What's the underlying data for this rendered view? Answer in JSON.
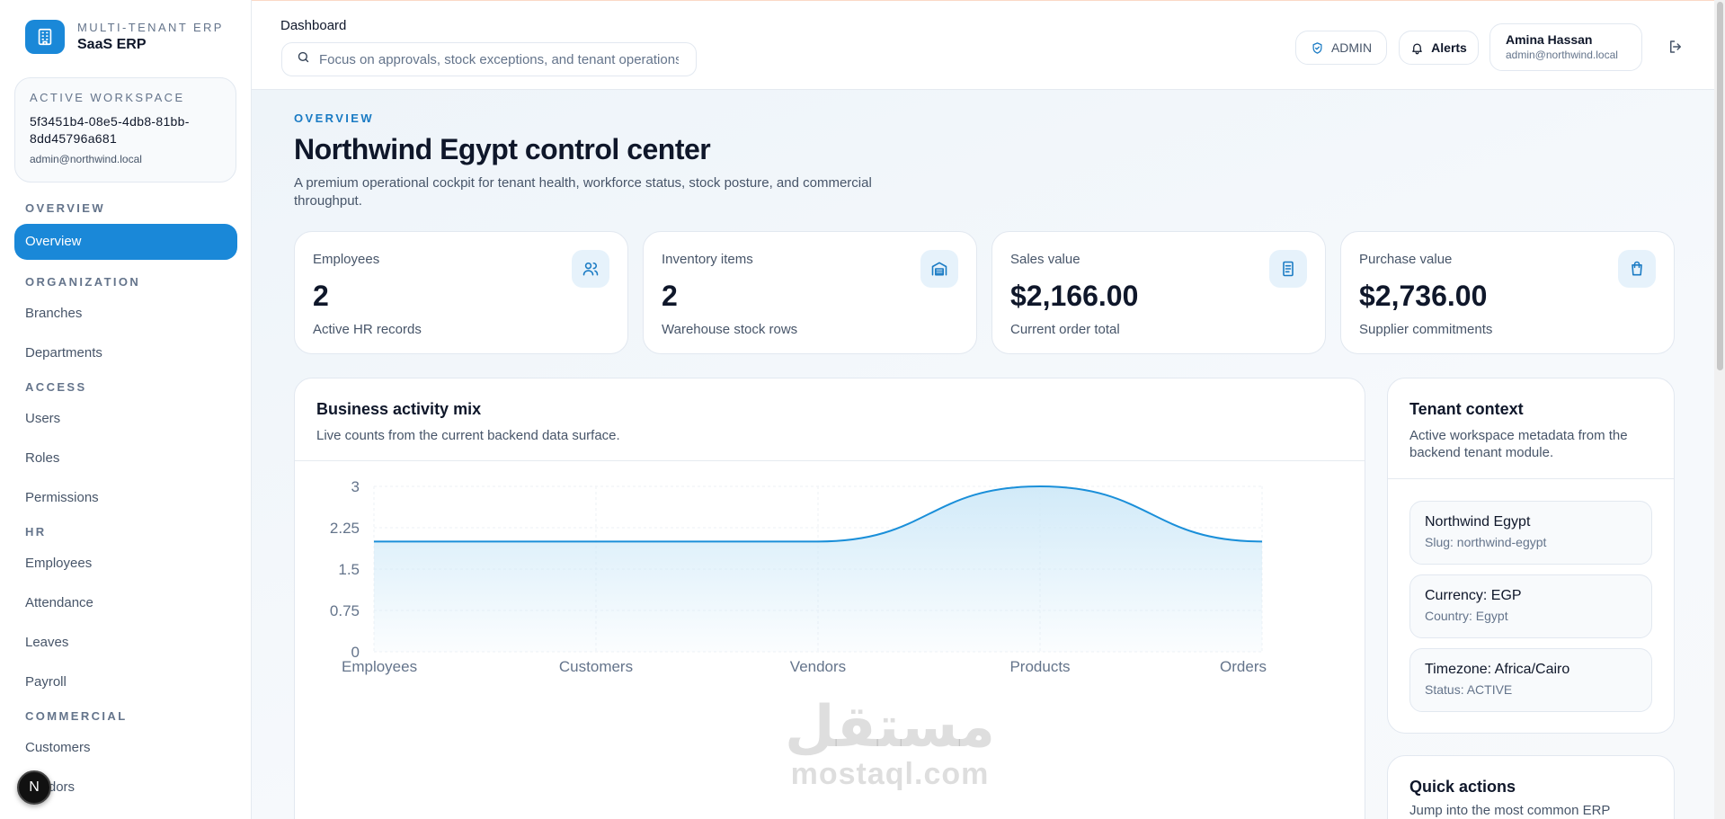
{
  "brand": {
    "subtitle": "MULTI-TENANT ERP",
    "name": "SaaS ERP",
    "icon": "building-icon"
  },
  "workspace": {
    "label": "ACTIVE WORKSPACE",
    "id": "5f3451b4-08e5-4db8-81bb-8dd45796a681",
    "email": "admin@northwind.local"
  },
  "nav": {
    "sections": [
      {
        "title": "OVERVIEW",
        "items": [
          "Overview"
        ]
      },
      {
        "title": "ORGANIZATION",
        "items": [
          "Branches",
          "Departments"
        ]
      },
      {
        "title": "ACCESS",
        "items": [
          "Users",
          "Roles",
          "Permissions"
        ]
      },
      {
        "title": "HR",
        "items": [
          "Employees",
          "Attendance",
          "Leaves",
          "Payroll"
        ]
      },
      {
        "title": "COMMERCIAL",
        "items": [
          "Customers",
          "Vendors"
        ]
      }
    ],
    "active": "Overview"
  },
  "fab": {
    "label": "N"
  },
  "header": {
    "title": "Dashboard",
    "search_placeholder": "Focus on approvals, stock exceptions, and tenant operations",
    "role_badge": "ADMIN",
    "alerts_label": "Alerts",
    "user_name": "Amina Hassan",
    "user_email": "admin@northwind.local"
  },
  "page": {
    "eyebrow": "OVERVIEW",
    "title": "Northwind Egypt control center",
    "description": "A premium operational cockpit for tenant health, workforce status, stock posture, and commercial throughput."
  },
  "stats": [
    {
      "label": "Employees",
      "value": "2",
      "note": "Active HR records",
      "icon": "users-icon"
    },
    {
      "label": "Inventory items",
      "value": "2",
      "note": "Warehouse stock rows",
      "icon": "warehouse-icon"
    },
    {
      "label": "Sales value",
      "value": "$2,166.00",
      "note": "Current order total",
      "icon": "receipt-icon"
    },
    {
      "label": "Purchase value",
      "value": "$2,736.00",
      "note": "Supplier commitments",
      "icon": "shopping-bag-icon"
    }
  ],
  "activity_chart": {
    "title": "Business activity mix",
    "subtitle": "Live counts from the current backend data surface."
  },
  "chart_data": {
    "type": "area",
    "categories": [
      "Employees",
      "Customers",
      "Vendors",
      "Products",
      "Orders"
    ],
    "series": [
      {
        "values": [
          2,
          2,
          2,
          3,
          2
        ]
      }
    ],
    "y_ticks": [
      "0",
      "0.75",
      "1.5",
      "2.25",
      "3"
    ],
    "ylim": [
      0,
      3
    ],
    "grid": true,
    "colors": {
      "line": "#1a8fd9",
      "fill": "#cfe9f8"
    }
  },
  "tenant": {
    "title": "Tenant context",
    "subtitle": "Active workspace metadata from the backend tenant module.",
    "items": [
      {
        "title": "Northwind Egypt",
        "sub": "Slug: northwind-egypt"
      },
      {
        "title": "Currency: EGP",
        "sub": "Country: Egypt"
      },
      {
        "title": "Timezone: Africa/Cairo",
        "sub": "Status: ACTIVE"
      }
    ]
  },
  "quick_actions": {
    "title": "Quick actions",
    "subtitle": "Jump into the most common ERP"
  },
  "watermark": {
    "arabic": "مستقل",
    "latin": "mostaql.com"
  },
  "colors": {
    "accent": "#1a88d8",
    "text": "#0f172a",
    "muted": "#475569"
  }
}
